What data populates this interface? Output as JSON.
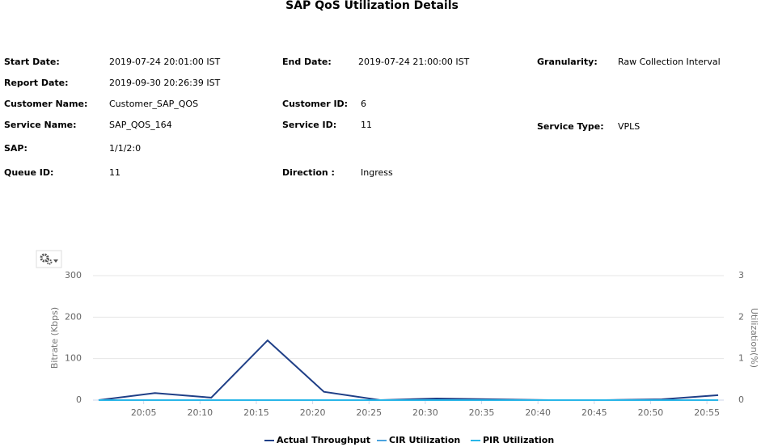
{
  "report": {
    "title": "SAP QoS Utilization Details",
    "fields": [
      {
        "label": "Start Date:",
        "value": "2019-07-24 20:01:00 IST"
      },
      {
        "label": "End Date:",
        "value": "2019-07-24 21:00:00 IST"
      },
      {
        "label": "Granularity:",
        "value": "Raw Collection Interval"
      },
      {
        "label": "Report Date:",
        "value": "2019-09-30 20:26:39 IST"
      },
      {
        "label": "Customer Name:",
        "value": "Customer_SAP_QOS"
      },
      {
        "label": "Customer ID:",
        "value": "6"
      },
      {
        "label": "Service Name:",
        "value": "SAP_QOS_164"
      },
      {
        "label": "Service ID:",
        "value": "11"
      },
      {
        "label": "Service Type:",
        "value": "VPLS"
      },
      {
        "label": "SAP:",
        "value": "1/1/2:0"
      },
      {
        "label": "Queue ID:",
        "value": "11"
      },
      {
        "label": "Direction :",
        "value": "Ingress"
      }
    ]
  },
  "chart_data": {
    "type": "line",
    "ylabel": "Bitrate (Kbps)",
    "y2label": "Utilization(%)",
    "x": [
      1,
      6,
      11,
      16,
      21,
      26,
      31,
      36,
      41,
      46,
      51,
      56
    ],
    "xlim": [
      0.5,
      56.5
    ],
    "xticks": [
      {
        "value": 5,
        "label": "20:05"
      },
      {
        "value": 10,
        "label": "20:10"
      },
      {
        "value": 15,
        "label": "20:15"
      },
      {
        "value": 20,
        "label": "20:20"
      },
      {
        "value": 25,
        "label": "20:25"
      },
      {
        "value": 30,
        "label": "20:30"
      },
      {
        "value": 35,
        "label": "20:35"
      },
      {
        "value": 40,
        "label": "20:40"
      },
      {
        "value": 45,
        "label": "20:45"
      },
      {
        "value": 50,
        "label": "20:50"
      },
      {
        "value": 55,
        "label": "20:55"
      }
    ],
    "ylim": [
      0,
      300
    ],
    "yticks": [
      0,
      100,
      200,
      300
    ],
    "y2lim": [
      0,
      3
    ],
    "y2ticks": [
      0,
      1,
      2,
      3
    ],
    "grid": true,
    "series": [
      {
        "name": "Actual Throughput",
        "color": "#1f3f87",
        "values": [
          0,
          17,
          6,
          144,
          20,
          0,
          4,
          2,
          0,
          0,
          2,
          12
        ]
      },
      {
        "name": "CIR Utilization",
        "color": "#4aa3df",
        "axis": "y2",
        "values": [
          0,
          0,
          0,
          0,
          0,
          0,
          0,
          0,
          0,
          0,
          0,
          0
        ]
      },
      {
        "name": "PIR Utilization",
        "color": "#29b6e8",
        "axis": "y2",
        "values": [
          0,
          0,
          0,
          0,
          0,
          0,
          0,
          0,
          0,
          0,
          0,
          0
        ]
      }
    ]
  }
}
